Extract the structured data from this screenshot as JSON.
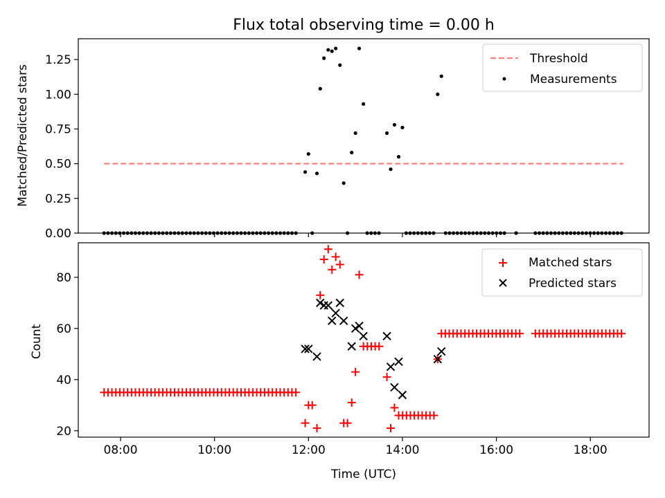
{
  "chart_data": [
    {
      "type": "scatter",
      "title": "Flux total observing time = 0.00 h",
      "xlabel": "",
      "ylabel": "Matched/Predicted stars",
      "xlim": [
        7.1,
        19.25
      ],
      "ylim": [
        0,
        1.4
      ],
      "grid": false,
      "legend_position": "top-right",
      "x_tick_labels": [
        "08:00",
        "10:00",
        "12:00",
        "14:00",
        "16:00",
        "18:00"
      ],
      "x_tick_values": [
        8,
        10,
        12,
        14,
        16,
        18
      ],
      "y_tick_labels": [
        "0.00",
        "0.25",
        "0.50",
        "0.75",
        "1.00",
        "1.25"
      ],
      "y_tick_values": [
        0,
        0.25,
        0.5,
        0.75,
        1.0,
        1.25
      ],
      "threshold": {
        "name": "Threshold",
        "value": 0.5,
        "x_range": [
          7.65,
          18.7
        ],
        "color": "#ff7f7f",
        "style": "dashed"
      },
      "series": [
        {
          "name": "Measurements",
          "color": "#000000",
          "marker": "dot",
          "points": [
            {
              "x": 11.93,
              "y": 0.44
            },
            {
              "x": 12.0,
              "y": 0.57
            },
            {
              "x": 12.18,
              "y": 0.43
            },
            {
              "x": 12.25,
              "y": 1.04
            },
            {
              "x": 12.33,
              "y": 1.26
            },
            {
              "x": 12.42,
              "y": 1.32
            },
            {
              "x": 12.5,
              "y": 1.31
            },
            {
              "x": 12.58,
              "y": 1.33
            },
            {
              "x": 12.67,
              "y": 1.21
            },
            {
              "x": 12.75,
              "y": 0.36
            },
            {
              "x": 12.92,
              "y": 0.58
            },
            {
              "x": 13.0,
              "y": 0.72
            },
            {
              "x": 13.08,
              "y": 1.33
            },
            {
              "x": 13.17,
              "y": 0.93
            },
            {
              "x": 13.67,
              "y": 0.72
            },
            {
              "x": 13.75,
              "y": 0.46
            },
            {
              "x": 13.83,
              "y": 0.78
            },
            {
              "x": 13.92,
              "y": 0.55
            },
            {
              "x": 14.0,
              "y": 0.76
            },
            {
              "x": 14.75,
              "y": 1.0
            },
            {
              "x": 14.83,
              "y": 1.13
            }
          ],
          "zero_segments": [
            {
              "start": 7.65,
              "end": 11.8,
              "step": 0.0833
            },
            {
              "start": 12.08,
              "end": 12.08,
              "step": 0.0833
            },
            {
              "start": 12.83,
              "end": 12.83,
              "step": 0.0833
            },
            {
              "start": 13.25,
              "end": 13.58,
              "step": 0.0833
            },
            {
              "start": 14.08,
              "end": 14.67,
              "step": 0.0833
            },
            {
              "start": 14.92,
              "end": 16.25,
              "step": 0.0833
            },
            {
              "start": 16.42,
              "end": 16.5,
              "step": 0.0833
            },
            {
              "start": 16.83,
              "end": 18.7,
              "step": 0.0833
            }
          ]
        }
      ]
    },
    {
      "type": "scatter",
      "title": "",
      "xlabel": "Time (UTC)",
      "ylabel": "Count",
      "xlim": [
        7.1,
        19.25
      ],
      "ylim": [
        17.5,
        93.5
      ],
      "grid": false,
      "legend_position": "top-right",
      "x_tick_labels": [
        "08:00",
        "10:00",
        "12:00",
        "14:00",
        "16:00",
        "18:00"
      ],
      "x_tick_values": [
        8,
        10,
        12,
        14,
        16,
        18
      ],
      "y_tick_labels": [
        "20",
        "40",
        "60",
        "80"
      ],
      "y_tick_values": [
        20,
        40,
        60,
        80
      ],
      "series": [
        {
          "name": "Matched stars",
          "color": "#ff0000",
          "marker": "plus",
          "points": [
            {
              "x": 11.93,
              "y": 23
            },
            {
              "x": 12.0,
              "y": 30
            },
            {
              "x": 12.08,
              "y": 30
            },
            {
              "x": 12.18,
              "y": 21
            },
            {
              "x": 12.25,
              "y": 73
            },
            {
              "x": 12.33,
              "y": 87
            },
            {
              "x": 12.42,
              "y": 91
            },
            {
              "x": 12.5,
              "y": 83
            },
            {
              "x": 12.58,
              "y": 88
            },
            {
              "x": 12.67,
              "y": 85
            },
            {
              "x": 12.75,
              "y": 23
            },
            {
              "x": 12.83,
              "y": 23
            },
            {
              "x": 12.92,
              "y": 31
            },
            {
              "x": 13.0,
              "y": 43
            },
            {
              "x": 13.08,
              "y": 81
            },
            {
              "x": 13.67,
              "y": 41
            },
            {
              "x": 13.75,
              "y": 21
            },
            {
              "x": 13.83,
              "y": 29
            }
          ],
          "constant_segments": [
            {
              "start": 7.65,
              "end": 11.8,
              "step": 0.0833,
              "y": 35
            },
            {
              "start": 13.17,
              "end": 13.58,
              "step": 0.0833,
              "y": 53
            },
            {
              "start": 13.92,
              "end": 14.67,
              "step": 0.0833,
              "y": 26
            },
            {
              "start": 14.75,
              "end": 14.75,
              "step": 0.0833,
              "y": 48
            },
            {
              "start": 14.83,
              "end": 16.5,
              "step": 0.0833,
              "y": 58
            },
            {
              "start": 16.83,
              "end": 18.7,
              "step": 0.0833,
              "y": 58
            }
          ]
        },
        {
          "name": "Predicted stars",
          "color": "#000000",
          "marker": "x",
          "points": [
            {
              "x": 11.93,
              "y": 52
            },
            {
              "x": 12.0,
              "y": 52
            },
            {
              "x": 12.18,
              "y": 49
            },
            {
              "x": 12.25,
              "y": 70
            },
            {
              "x": 12.33,
              "y": 69
            },
            {
              "x": 12.42,
              "y": 69
            },
            {
              "x": 12.5,
              "y": 63
            },
            {
              "x": 12.58,
              "y": 66
            },
            {
              "x": 12.67,
              "y": 70
            },
            {
              "x": 12.75,
              "y": 63
            },
            {
              "x": 12.92,
              "y": 53
            },
            {
              "x": 13.0,
              "y": 60
            },
            {
              "x": 13.08,
              "y": 61
            },
            {
              "x": 13.17,
              "y": 57
            },
            {
              "x": 13.67,
              "y": 57
            },
            {
              "x": 13.75,
              "y": 45
            },
            {
              "x": 13.83,
              "y": 37
            },
            {
              "x": 13.92,
              "y": 47
            },
            {
              "x": 14.0,
              "y": 34
            },
            {
              "x": 14.75,
              "y": 48
            },
            {
              "x": 14.83,
              "y": 51
            }
          ]
        }
      ]
    }
  ]
}
